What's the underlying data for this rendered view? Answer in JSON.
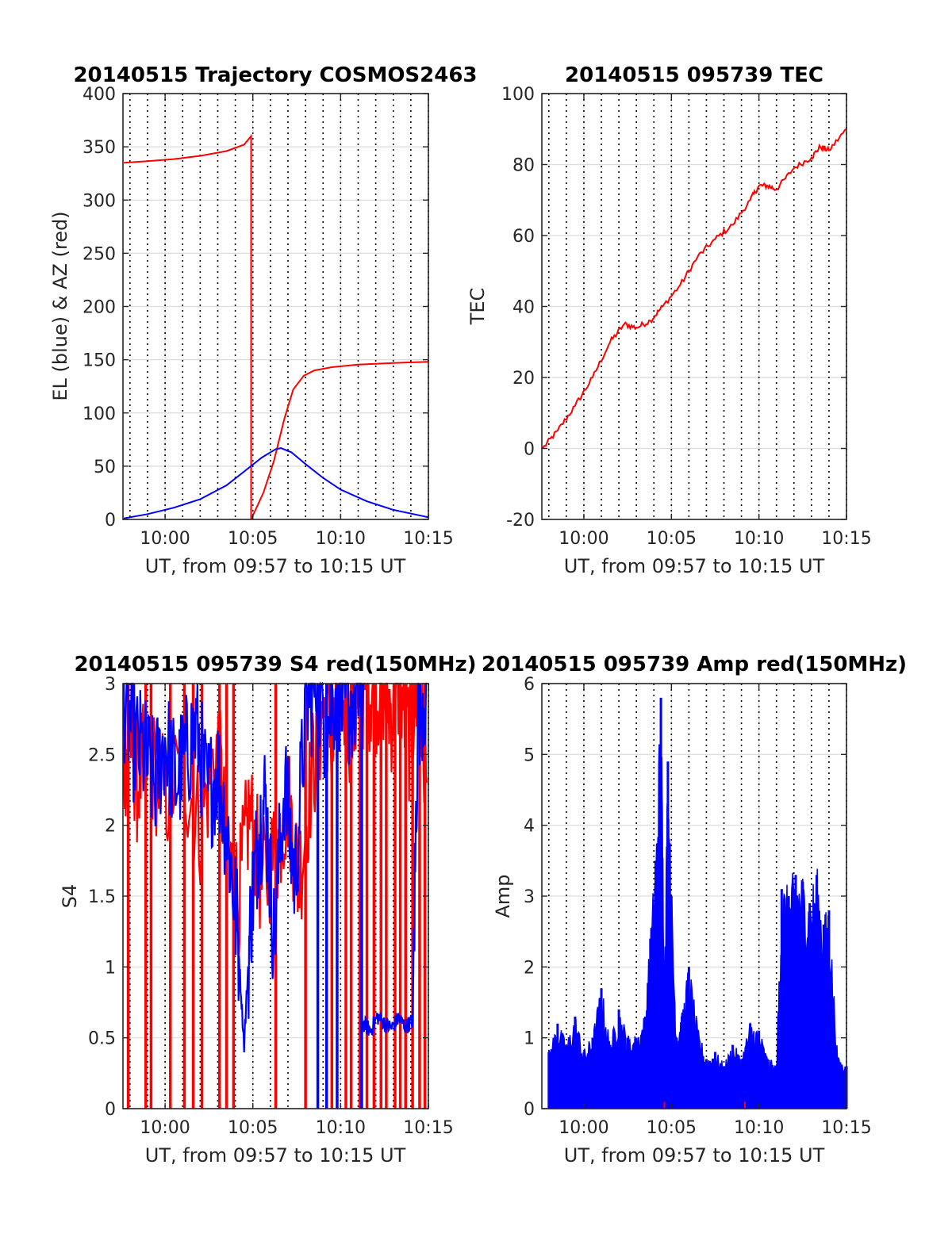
{
  "chart_data": [
    {
      "id": "trajectory",
      "type": "line",
      "title": "20140515 Trajectory COSMOS2463",
      "xlabel": "UT, from 09:57 to 10:15 UT",
      "ylabel": "EL (blue) & AZ (red)",
      "xlim": [
        597.6,
        615
      ],
      "ylim": [
        0,
        400
      ],
      "xticks": [
        {
          "v": 600,
          "label": "10:00"
        },
        {
          "v": 605,
          "label": "10:05"
        },
        {
          "v": 610,
          "label": "10:10"
        },
        {
          "v": 615,
          "label": "10:15"
        }
      ],
      "yticks": [
        0,
        50,
        100,
        150,
        200,
        250,
        300,
        350,
        400
      ],
      "grid": true,
      "minute_markers": true,
      "series": [
        {
          "color": "#ff0000",
          "x": [
            597.65,
            599,
            600.5,
            602,
            603.5,
            604.5,
            604.9,
            604.9,
            605.6,
            606.2,
            606.8,
            607.3,
            607.9,
            608.5,
            609.5,
            611,
            613,
            615
          ],
          "y": [
            335,
            336.5,
            338.5,
            341.5,
            346,
            352,
            360,
            0,
            25,
            55,
            95,
            122,
            135,
            140,
            143,
            145.5,
            147,
            148
          ]
        },
        {
          "color": "#0000ff",
          "x": [
            597.65,
            599,
            600.5,
            602,
            603.5,
            604.5,
            605.5,
            606.3,
            606.6,
            607.2,
            608,
            609,
            610,
            611.5,
            613,
            615
          ],
          "y": [
            1,
            5,
            11,
            19,
            32,
            45,
            58,
            66,
            67,
            63,
            52,
            39,
            28,
            17,
            9,
            2
          ]
        }
      ]
    },
    {
      "id": "tec",
      "type": "line",
      "title": "20140515 095739 TEC",
      "xlabel": "UT, from 09:57 to 10:15 UT",
      "ylabel": "TEC",
      "xlim": [
        597.6,
        615
      ],
      "ylim": [
        -20,
        100
      ],
      "xticks": [
        {
          "v": 600,
          "label": "10:00"
        },
        {
          "v": 605,
          "label": "10:05"
        },
        {
          "v": 610,
          "label": "10:10"
        },
        {
          "v": 615,
          "label": "10:15"
        }
      ],
      "yticks": [
        -20,
        0,
        20,
        40,
        60,
        80,
        100
      ],
      "grid": true,
      "minute_markers": true,
      "series": [
        {
          "color": "#ff0000",
          "x": [
            597.65,
            598.5,
            599.5,
            600.5,
            601.5,
            602.3,
            603,
            603.8,
            604.5,
            605.5,
            606.5,
            607.5,
            608.5,
            609.5,
            610,
            610.5,
            611,
            612,
            613,
            613.5,
            614,
            615
          ],
          "y": [
            0,
            5,
            12,
            20,
            30,
            35,
            34,
            36,
            40,
            46,
            54,
            59,
            63,
            70,
            74,
            74,
            73,
            79,
            82,
            85,
            84,
            90
          ]
        }
      ]
    },
    {
      "id": "s4",
      "type": "line",
      "title": "20140515 095739 S4 red(150MHz)",
      "xlabel": "UT, from 09:57 to 10:15 UT",
      "ylabel": "S4",
      "xlim": [
        597.6,
        615
      ],
      "ylim": [
        0,
        3
      ],
      "xticks": [
        {
          "v": 600,
          "label": "10:00"
        },
        {
          "v": 605,
          "label": "10:05"
        },
        {
          "v": 610,
          "label": "10:10"
        },
        {
          "v": 615,
          "label": "10:15"
        }
      ],
      "yticks": [
        0,
        0.5,
        1,
        1.5,
        2,
        2.5,
        3
      ],
      "ytick_labels": [
        "0",
        "0.5",
        "1",
        "1.5",
        "2",
        "2.5",
        "3"
      ],
      "grid": true,
      "minute_markers": true,
      "series": [
        {
          "color": "#ff0000",
          "segments": [
            {
              "x": [
                597.65,
                598.0,
                598.4,
                599.0,
                600.0,
                601.0,
                602.0,
                603.0,
                603.5,
                604.2,
                604.8,
                605.5,
                606.3,
                607.0,
                607.6,
                608.4,
                609.0,
                609.6,
                610.0,
                610.6,
                611.1,
                611.4
              ],
              "y": [
                2.4,
                2.7,
                2.3,
                2.5,
                2.2,
                2.4,
                2.0,
                2.6,
                1.8,
                1.5,
                2.1,
                1.6,
                1.8,
                2.2,
                1.6,
                2.4,
                2.8,
                2.6,
                3.0,
                2.7,
                2.9,
                3.0
              ]
            },
            {
              "x": [
                611.5,
                611.9,
                612.4,
                612.9,
                613.4,
                613.9,
                614.4,
                614.9
              ],
              "y": [
                3.0,
                2.9,
                3.0,
                2.8,
                3.0,
                2.6,
                3.0,
                2.3
              ]
            }
          ],
          "drops_to_zero": [
            597.9,
            598.9,
            599.2,
            600.3,
            601.1,
            601.6,
            602.1,
            603.1,
            603.5,
            603.9,
            606.3,
            608.0,
            609.5,
            610.3,
            610.6,
            611.1,
            611.5,
            611.9,
            612.3,
            612.6,
            613.1,
            613.4,
            613.7,
            614.1,
            614.5,
            614.8
          ]
        },
        {
          "color": "#0000ff",
          "segments": [
            {
              "x": [
                597.65,
                598.2,
                598.8,
                599.4,
                600.0,
                600.6,
                601.2,
                601.8,
                602.4,
                603.0,
                603.6,
                604.1,
                604.5,
                604.9,
                605.3,
                605.7,
                606.2,
                606.8,
                607.4,
                608.0,
                608.6,
                609.2,
                609.8,
                610.3,
                610.9,
                611.3
              ],
              "y": [
                2.9,
                2.6,
                2.5,
                2.3,
                2.6,
                2.3,
                2.5,
                2.7,
                2.2,
                2.4,
                1.9,
                1.3,
                0.45,
                1.4,
                1.9,
                2.2,
                1.2,
                2.3,
                1.6,
                2.8,
                3.0,
                2.7,
                3.0,
                2.8,
                2.9,
                3.0
              ]
            },
            {
              "x": [
                611.3,
                611.7,
                612.1,
                612.5,
                612.9,
                613.3,
                613.7,
                614.1,
                614.4,
                614.9
              ],
              "y": [
                0.6,
                0.55,
                0.65,
                0.6,
                0.57,
                0.64,
                0.58,
                0.62,
                2.8,
                3.0
              ]
            }
          ],
          "drops_to_zero": [
            608.7,
            609.2,
            609.8,
            611.2
          ]
        }
      ]
    },
    {
      "id": "amp",
      "type": "line",
      "title": "20140515 095739 Amp red(150MHz)",
      "xlabel": "UT, from 09:57 to 10:15 UT",
      "ylabel": "Amp",
      "xlim": [
        597.6,
        615
      ],
      "ylim": [
        0,
        6
      ],
      "xticks": [
        {
          "v": 600,
          "label": "10:00"
        },
        {
          "v": 605,
          "label": "10:05"
        },
        {
          "v": 610,
          "label": "10:10"
        },
        {
          "v": 615,
          "label": "10:15"
        }
      ],
      "yticks": [
        0,
        1,
        2,
        3,
        4,
        5,
        6
      ],
      "grid": true,
      "minute_markers": true,
      "series": [
        {
          "color": "#0000ff",
          "x": [
            598.0,
            598.5,
            599.0,
            599.5,
            600.0,
            600.5,
            601.0,
            601.5,
            602.0,
            602.5,
            603.0,
            603.5,
            603.8,
            604.1,
            604.4,
            604.6,
            604.8,
            605.0,
            605.3,
            605.6,
            606.0,
            606.5,
            607.0,
            607.5,
            608.0,
            608.5,
            609.0,
            609.5,
            610.0,
            610.5,
            611.0,
            611.3,
            611.7,
            612.1,
            612.5,
            612.9,
            613.3,
            613.7,
            614.0,
            614.5,
            615.0
          ],
          "y": [
            0.8,
            1.2,
            0.9,
            1.3,
            0.8,
            1.0,
            1.7,
            0.9,
            1.4,
            1.0,
            1.0,
            1.3,
            2.4,
            3.5,
            5.8,
            2.1,
            4.9,
            3.0,
            1.0,
            1.3,
            2.0,
            1.1,
            0.7,
            0.8,
            0.6,
            0.9,
            0.7,
            1.2,
            1.1,
            0.7,
            0.6,
            3.1,
            3.0,
            3.3,
            3.2,
            2.9,
            3.3,
            2.6,
            2.8,
            0.7,
            0.6
          ]
        },
        {
          "color": "#ff0000",
          "x": [
            604.6,
            609.2
          ],
          "y": [
            0.05,
            0.05
          ]
        }
      ]
    }
  ]
}
